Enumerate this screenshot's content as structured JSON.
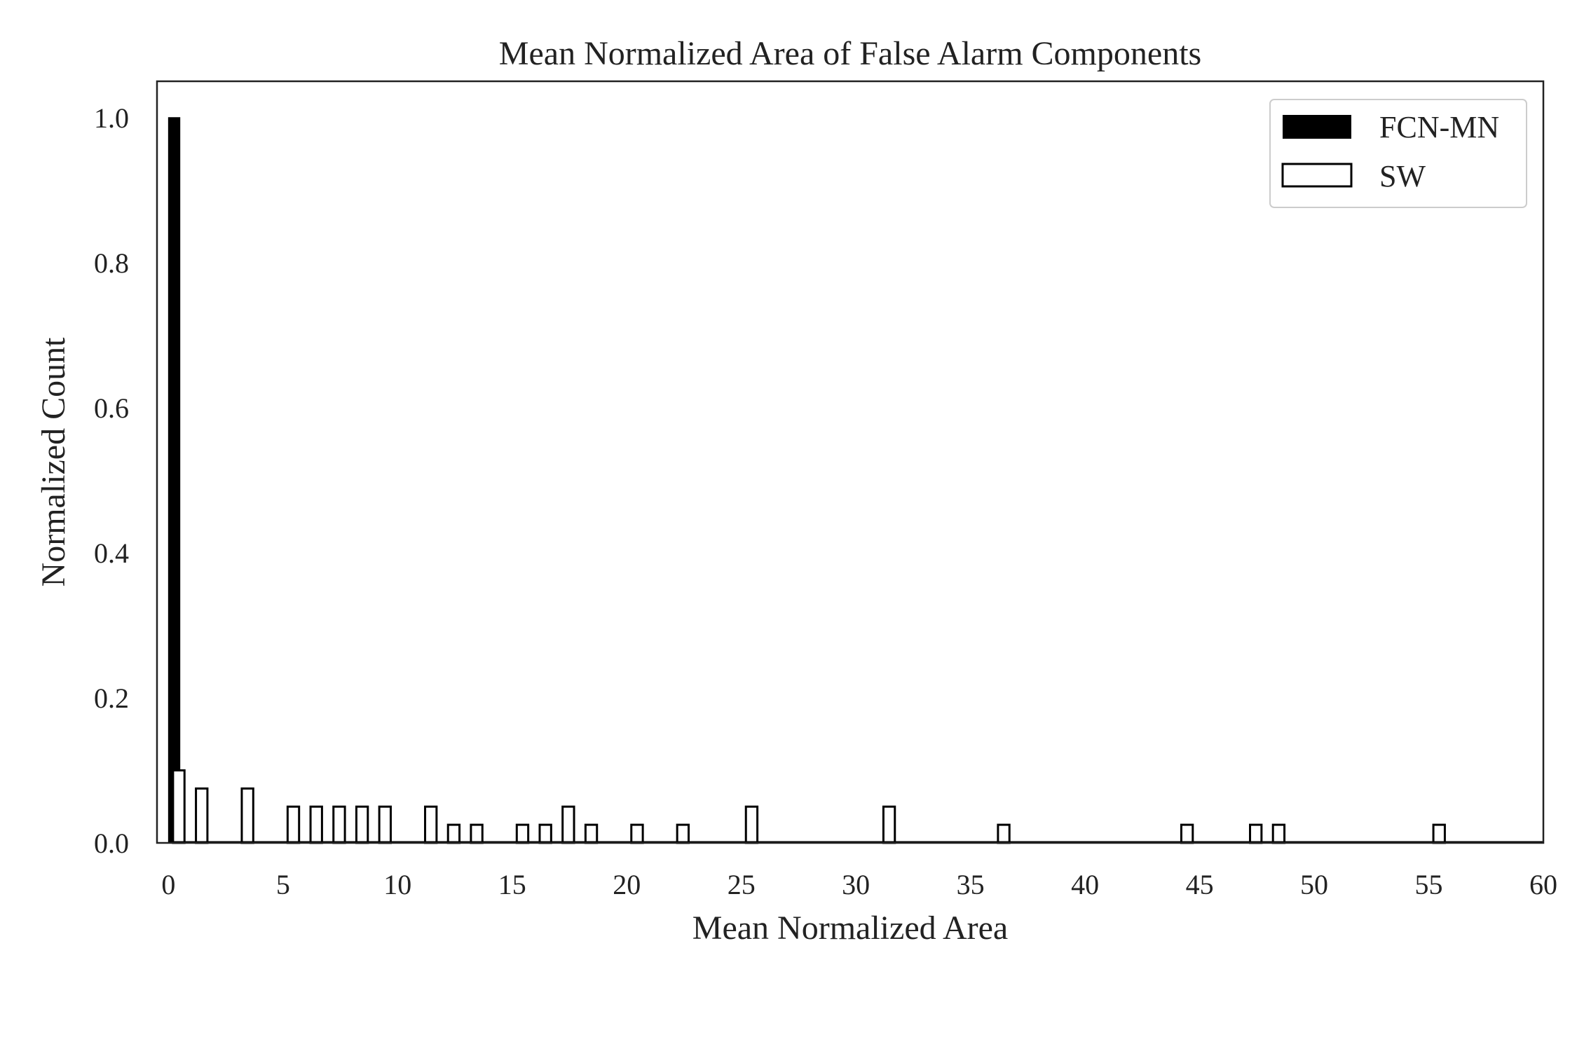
{
  "chart_data": {
    "type": "bar",
    "title": "Mean Normalized Area of False Alarm Components",
    "xlabel": "Mean Normalized Area",
    "ylabel": "Normalized Count",
    "xlim": [
      -0.5,
      60
    ],
    "ylim": [
      0,
      1.05
    ],
    "xticks": [
      "0",
      "5",
      "10",
      "15",
      "20",
      "25",
      "30",
      "35",
      "40",
      "45",
      "50",
      "55",
      "60"
    ],
    "yticks": [
      "0.0",
      "0.2",
      "0.4",
      "0.6",
      "0.8",
      "1.0"
    ],
    "grid": false,
    "legend_position": "top-right",
    "bin_width": 0.5,
    "series": [
      {
        "name": "FCN-MN",
        "color": "#000000",
        "style": "filled",
        "x": [
          0
        ],
        "values": [
          1.0
        ]
      },
      {
        "name": "SW",
        "color": "#000000",
        "style": "outline",
        "x": [
          0.2,
          1.2,
          3.2,
          5.2,
          6.2,
          7.2,
          8.2,
          9.2,
          11.2,
          12.2,
          13.2,
          15.2,
          16.2,
          17.2,
          18.2,
          20.2,
          22.2,
          25.2,
          31.2,
          36.2,
          44.2,
          47.2,
          48.2,
          55.2
        ],
        "values": [
          0.1,
          0.075,
          0.075,
          0.05,
          0.05,
          0.05,
          0.05,
          0.05,
          0.05,
          0.025,
          0.025,
          0.025,
          0.025,
          0.05,
          0.025,
          0.025,
          0.025,
          0.05,
          0.05,
          0.025,
          0.025,
          0.025,
          0.025,
          0.025
        ]
      }
    ]
  }
}
